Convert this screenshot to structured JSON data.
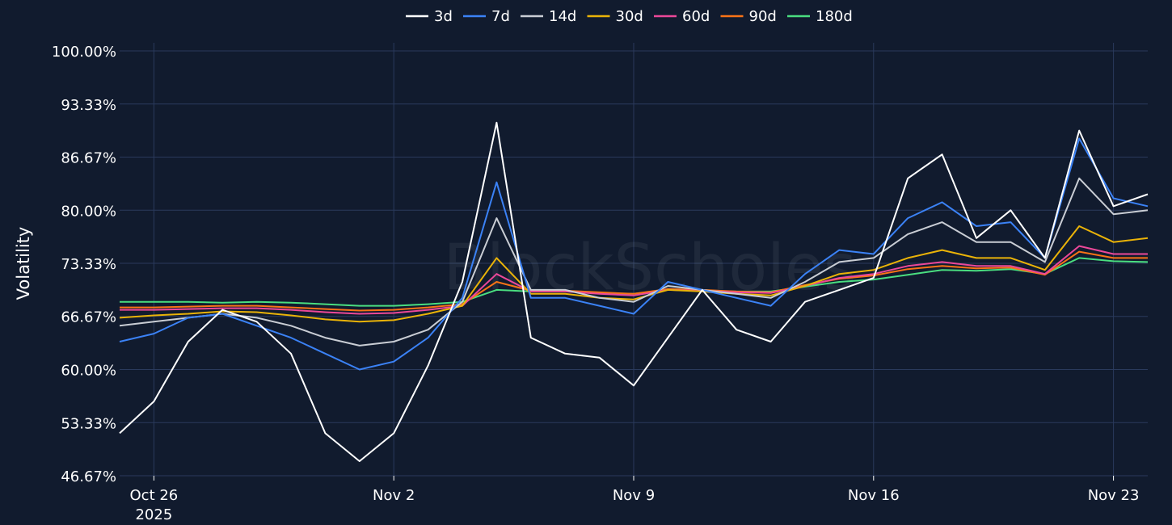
{
  "watermark": "BlockScholes",
  "chart_data": {
    "type": "line",
    "title": "",
    "xlabel": "",
    "ylabel": "Volatility",
    "x_range": [
      "2025-10-25",
      "2025-11-24"
    ],
    "ylim": [
      46.67,
      100.0
    ],
    "y_ticks": [
      "46.67%",
      "53.33%",
      "60.00%",
      "66.67%",
      "73.33%",
      "80.00%",
      "86.67%",
      "93.33%",
      "100.00%"
    ],
    "x_ticks": [
      {
        "date": "2025-10-26",
        "label": "Oct 26",
        "sublabel": "2025"
      },
      {
        "date": "2025-11-02",
        "label": "Nov 2",
        "sublabel": ""
      },
      {
        "date": "2025-11-09",
        "label": "Nov 9",
        "sublabel": ""
      },
      {
        "date": "2025-11-16",
        "label": "Nov 16",
        "sublabel": ""
      },
      {
        "date": "2025-11-23",
        "label": "Nov 23",
        "sublabel": ""
      }
    ],
    "grid": true,
    "legend_position": "top-center",
    "series": [
      {
        "name": "3d",
        "color": "#ffffff",
        "x": [
          "2025-10-25",
          "2025-10-26",
          "2025-10-27",
          "2025-10-28",
          "2025-10-29",
          "2025-10-30",
          "2025-10-31",
          "2025-11-01",
          "2025-11-02",
          "2025-11-03",
          "2025-11-04",
          "2025-11-05",
          "2025-11-06",
          "2025-11-07",
          "2025-11-08",
          "2025-11-09",
          "2025-11-10",
          "2025-11-11",
          "2025-11-12",
          "2025-11-13",
          "2025-11-14",
          "2025-11-15",
          "2025-11-16",
          "2025-11-17",
          "2025-11-18",
          "2025-11-19",
          "2025-11-20",
          "2025-11-21",
          "2025-11-22",
          "2025-11-23",
          "2025-11-24"
        ],
        "values": [
          52.0,
          56.0,
          63.5,
          67.5,
          66.0,
          62.0,
          52.0,
          48.5,
          52.0,
          60.5,
          71.0,
          91.0,
          64.0,
          62.0,
          61.5,
          58.0,
          64.0,
          70.0,
          65.0,
          63.5,
          68.5,
          70.0,
          71.5,
          84.0,
          87.0,
          76.5,
          80.0,
          74.0,
          90.0,
          80.5,
          82.0
        ]
      },
      {
        "name": "7d",
        "color": "#3b82f6",
        "x": [
          "2025-10-25",
          "2025-10-26",
          "2025-10-27",
          "2025-10-28",
          "2025-10-29",
          "2025-10-30",
          "2025-10-31",
          "2025-11-01",
          "2025-11-02",
          "2025-11-03",
          "2025-11-04",
          "2025-11-05",
          "2025-11-06",
          "2025-11-07",
          "2025-11-08",
          "2025-11-09",
          "2025-11-10",
          "2025-11-11",
          "2025-11-12",
          "2025-11-13",
          "2025-11-14",
          "2025-11-15",
          "2025-11-16",
          "2025-11-17",
          "2025-11-18",
          "2025-11-19",
          "2025-11-20",
          "2025-11-21",
          "2025-11-22",
          "2025-11-23",
          "2025-11-24"
        ],
        "values": [
          63.5,
          64.5,
          66.5,
          67.0,
          65.5,
          64.0,
          62.0,
          60.0,
          61.0,
          64.0,
          69.0,
          83.5,
          69.0,
          69.0,
          68.0,
          67.0,
          71.0,
          70.0,
          69.0,
          68.0,
          72.0,
          75.0,
          74.5,
          79.0,
          81.0,
          78.0,
          78.5,
          74.0,
          89.0,
          81.5,
          80.5
        ]
      },
      {
        "name": "14d",
        "color": "#c9cdd4",
        "x": [
          "2025-10-25",
          "2025-10-26",
          "2025-10-27",
          "2025-10-28",
          "2025-10-29",
          "2025-10-30",
          "2025-10-31",
          "2025-11-01",
          "2025-11-02",
          "2025-11-03",
          "2025-11-04",
          "2025-11-05",
          "2025-11-06",
          "2025-11-07",
          "2025-11-08",
          "2025-11-09",
          "2025-11-10",
          "2025-11-11",
          "2025-11-12",
          "2025-11-13",
          "2025-11-14",
          "2025-11-15",
          "2025-11-16",
          "2025-11-17",
          "2025-11-18",
          "2025-11-19",
          "2025-11-20",
          "2025-11-21",
          "2025-11-22",
          "2025-11-23",
          "2025-11-24"
        ],
        "values": [
          65.5,
          66.0,
          66.5,
          67.0,
          66.5,
          65.5,
          64.0,
          63.0,
          63.5,
          65.0,
          68.5,
          79.0,
          70.0,
          70.0,
          69.0,
          68.5,
          70.5,
          70.0,
          69.5,
          69.0,
          71.0,
          73.5,
          74.0,
          77.0,
          78.5,
          76.0,
          76.0,
          73.5,
          84.0,
          79.5,
          80.0
        ]
      },
      {
        "name": "30d",
        "color": "#eab308",
        "x": [
          "2025-10-25",
          "2025-10-26",
          "2025-10-27",
          "2025-10-28",
          "2025-10-29",
          "2025-10-30",
          "2025-10-31",
          "2025-11-01",
          "2025-11-02",
          "2025-11-03",
          "2025-11-04",
          "2025-11-05",
          "2025-11-06",
          "2025-11-07",
          "2025-11-08",
          "2025-11-09",
          "2025-11-10",
          "2025-11-11",
          "2025-11-12",
          "2025-11-13",
          "2025-11-14",
          "2025-11-15",
          "2025-11-16",
          "2025-11-17",
          "2025-11-18",
          "2025-11-19",
          "2025-11-20",
          "2025-11-21",
          "2025-11-22",
          "2025-11-23",
          "2025-11-24"
        ],
        "values": [
          66.5,
          66.8,
          67.0,
          67.3,
          67.2,
          66.8,
          66.3,
          66.0,
          66.2,
          67.0,
          68.0,
          74.0,
          69.5,
          69.5,
          69.0,
          68.8,
          70.0,
          69.8,
          69.5,
          69.3,
          70.5,
          72.0,
          72.5,
          74.0,
          75.0,
          74.0,
          74.0,
          72.5,
          78.0,
          76.0,
          76.5
        ]
      },
      {
        "name": "60d",
        "color": "#ec4899",
        "x": [
          "2025-10-25",
          "2025-10-26",
          "2025-10-27",
          "2025-10-28",
          "2025-10-29",
          "2025-10-30",
          "2025-10-31",
          "2025-11-01",
          "2025-11-02",
          "2025-11-03",
          "2025-11-04",
          "2025-11-05",
          "2025-11-06",
          "2025-11-07",
          "2025-11-08",
          "2025-11-09",
          "2025-11-10",
          "2025-11-11",
          "2025-11-12",
          "2025-11-13",
          "2025-11-14",
          "2025-11-15",
          "2025-11-16",
          "2025-11-17",
          "2025-11-18",
          "2025-11-19",
          "2025-11-20",
          "2025-11-21",
          "2025-11-22",
          "2025-11-23",
          "2025-11-24"
        ],
        "values": [
          67.5,
          67.5,
          67.6,
          67.7,
          67.7,
          67.5,
          67.2,
          67.0,
          67.1,
          67.5,
          68.0,
          72.0,
          69.8,
          69.8,
          69.5,
          69.3,
          70.0,
          69.9,
          69.7,
          69.6,
          70.5,
          71.5,
          72.0,
          73.0,
          73.5,
          73.0,
          73.0,
          72.0,
          75.5,
          74.5,
          74.5
        ]
      },
      {
        "name": "90d",
        "color": "#f97316",
        "x": [
          "2025-10-25",
          "2025-10-26",
          "2025-10-27",
          "2025-10-28",
          "2025-10-29",
          "2025-10-30",
          "2025-10-31",
          "2025-11-01",
          "2025-11-02",
          "2025-11-03",
          "2025-11-04",
          "2025-11-05",
          "2025-11-06",
          "2025-11-07",
          "2025-11-08",
          "2025-11-09",
          "2025-11-10",
          "2025-11-11",
          "2025-11-12",
          "2025-11-13",
          "2025-11-14",
          "2025-11-15",
          "2025-11-16",
          "2025-11-17",
          "2025-11-18",
          "2025-11-19",
          "2025-11-20",
          "2025-11-21",
          "2025-11-22",
          "2025-11-23",
          "2025-11-24"
        ],
        "values": [
          67.8,
          67.8,
          67.9,
          68.0,
          68.0,
          67.8,
          67.6,
          67.4,
          67.5,
          67.8,
          68.2,
          71.0,
          69.9,
          69.9,
          69.7,
          69.5,
          70.1,
          70.0,
          69.8,
          69.7,
          70.6,
          71.4,
          71.8,
          72.6,
          73.0,
          72.7,
          72.8,
          71.9,
          74.8,
          74.0,
          74.0
        ]
      },
      {
        "name": "180d",
        "color": "#4ade80",
        "x": [
          "2025-10-25",
          "2025-10-26",
          "2025-10-27",
          "2025-10-28",
          "2025-10-29",
          "2025-10-30",
          "2025-10-31",
          "2025-11-01",
          "2025-11-02",
          "2025-11-03",
          "2025-11-04",
          "2025-11-05",
          "2025-11-06",
          "2025-11-07",
          "2025-11-08",
          "2025-11-09",
          "2025-11-10",
          "2025-11-11",
          "2025-11-12",
          "2025-11-13",
          "2025-11-14",
          "2025-11-15",
          "2025-11-16",
          "2025-11-17",
          "2025-11-18",
          "2025-11-19",
          "2025-11-20",
          "2025-11-21",
          "2025-11-22",
          "2025-11-23",
          "2025-11-24"
        ],
        "values": [
          68.5,
          68.5,
          68.5,
          68.4,
          68.5,
          68.4,
          68.2,
          68.0,
          68.0,
          68.2,
          68.5,
          70.0,
          69.8,
          69.8,
          69.6,
          69.5,
          70.0,
          69.9,
          69.8,
          69.8,
          70.4,
          71.0,
          71.3,
          71.9,
          72.5,
          72.4,
          72.6,
          72.0,
          74.0,
          73.6,
          73.5
        ]
      }
    ]
  }
}
